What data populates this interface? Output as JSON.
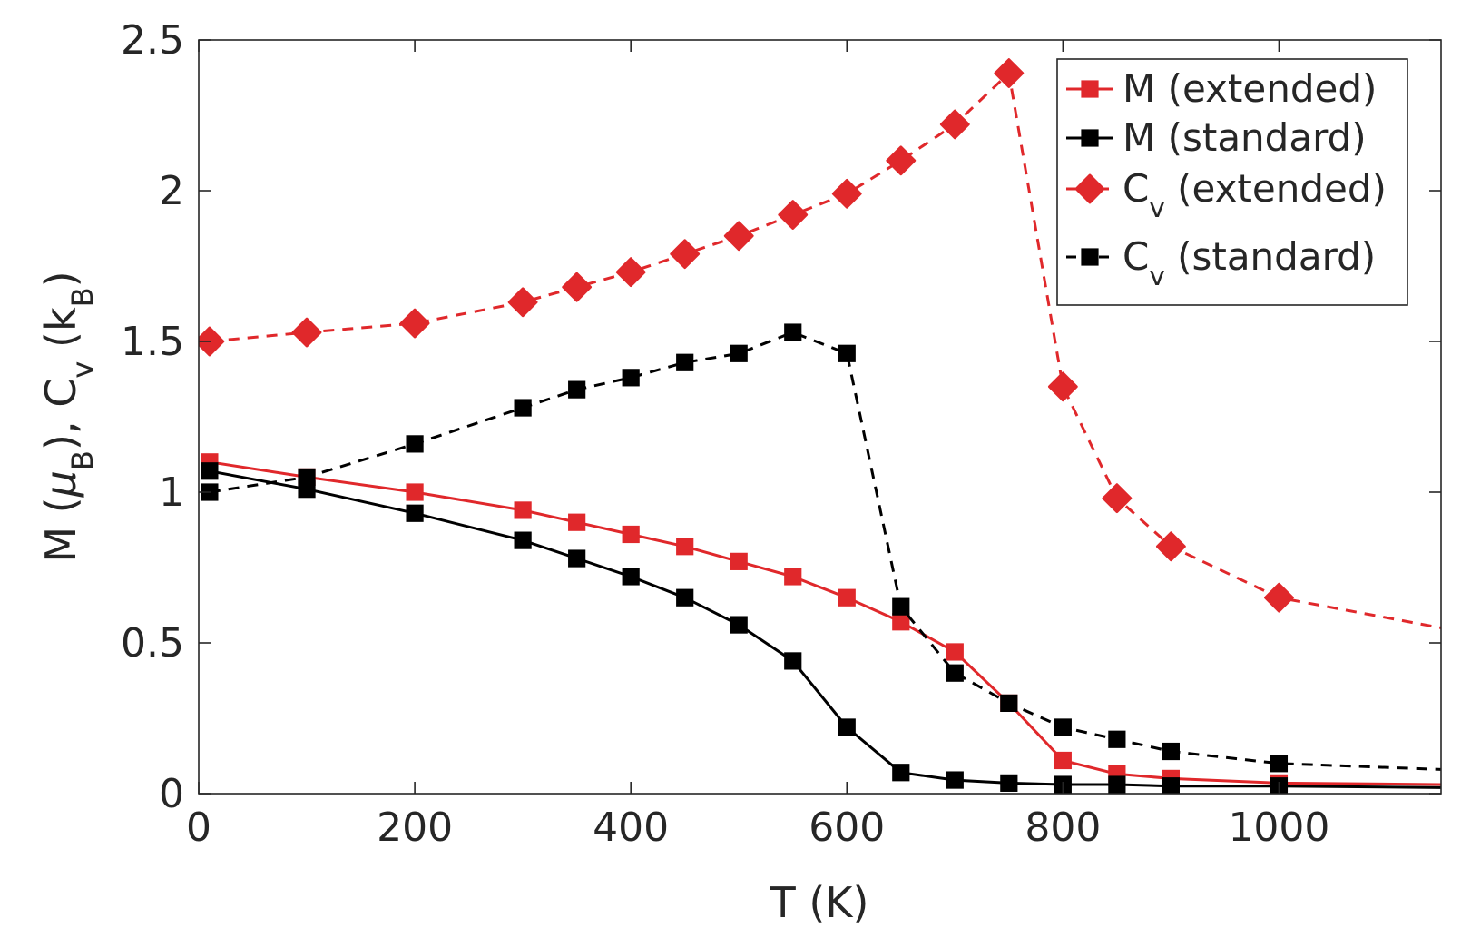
{
  "chart_data": {
    "type": "line",
    "title": "",
    "xlabel": "T (K)",
    "ylabel": {
      "parts": [
        {
          "text": "M ("
        },
        {
          "text": "μ",
          "style": "italic"
        },
        {
          "text": "B",
          "baseline": "sub"
        },
        {
          "text": "), C"
        },
        {
          "text": "v",
          "baseline": "sub"
        },
        {
          "text": " (k"
        },
        {
          "text": "B",
          "baseline": "sub"
        },
        {
          "text": ")"
        }
      ]
    },
    "xlim": [
      0,
      1150
    ],
    "ylim": [
      0,
      2.5
    ],
    "xticks": [
      0,
      200,
      400,
      600,
      800,
      1000
    ],
    "xtick_labels": [
      "0",
      "200",
      "400",
      "600",
      "800",
      "1000"
    ],
    "yticks": [
      0,
      0.5,
      1,
      1.5,
      2,
      2.5
    ],
    "ytick_labels": [
      "0",
      "0.5",
      "1",
      "1.5",
      "2",
      "2.5"
    ],
    "grid": false,
    "legend_position": "top-right",
    "series": [
      {
        "name": "M (extended)",
        "legend_parts": [
          {
            "text": "M (extended)"
          }
        ],
        "color": "#e0282b",
        "line": "solid",
        "marker": "square",
        "x": [
          10,
          100,
          200,
          300,
          350,
          400,
          450,
          500,
          550,
          600,
          650,
          700,
          750,
          800,
          850,
          900,
          1000,
          1150
        ],
        "y": [
          1.1,
          1.05,
          1.0,
          0.94,
          0.9,
          0.86,
          0.82,
          0.77,
          0.72,
          0.65,
          0.57,
          0.47,
          0.3,
          0.11,
          0.065,
          0.05,
          0.035,
          0.03
        ]
      },
      {
        "name": "M (standard)",
        "legend_parts": [
          {
            "text": "M (standard)"
          }
        ],
        "color": "#000000",
        "line": "solid",
        "marker": "square",
        "x": [
          10,
          100,
          200,
          300,
          350,
          400,
          450,
          500,
          550,
          600,
          650,
          700,
          750,
          800,
          850,
          900,
          1000,
          1150
        ],
        "y": [
          1.07,
          1.01,
          0.93,
          0.84,
          0.78,
          0.72,
          0.65,
          0.56,
          0.44,
          0.22,
          0.07,
          0.045,
          0.035,
          0.03,
          0.03,
          0.025,
          0.025,
          0.02
        ]
      },
      {
        "name": "Cv (extended)",
        "legend_parts": [
          {
            "text": "C"
          },
          {
            "text": "v",
            "baseline": "sub"
          },
          {
            "text": " (extended)"
          }
        ],
        "color": "#e0282b",
        "line": "dashed",
        "marker": "diamond",
        "x": [
          10,
          100,
          200,
          300,
          350,
          400,
          450,
          500,
          550,
          600,
          650,
          700,
          750,
          800,
          850,
          900,
          1000,
          1150
        ],
        "y": [
          1.5,
          1.53,
          1.56,
          1.63,
          1.68,
          1.73,
          1.79,
          1.85,
          1.92,
          1.99,
          2.1,
          2.22,
          2.39,
          1.35,
          0.98,
          0.82,
          0.65,
          0.55
        ]
      },
      {
        "name": "Cv (standard)",
        "legend_parts": [
          {
            "text": "C"
          },
          {
            "text": "v",
            "baseline": "sub"
          },
          {
            "text": " (standard)"
          }
        ],
        "color": "#000000",
        "line": "dashed",
        "marker": "square",
        "x": [
          10,
          100,
          200,
          300,
          350,
          400,
          450,
          500,
          550,
          600,
          650,
          700,
          750,
          800,
          850,
          900,
          1000,
          1150
        ],
        "y": [
          1.0,
          1.05,
          1.16,
          1.28,
          1.34,
          1.38,
          1.43,
          1.46,
          1.53,
          1.46,
          0.62,
          0.4,
          0.3,
          0.22,
          0.18,
          0.14,
          0.1,
          0.08
        ]
      }
    ]
  }
}
